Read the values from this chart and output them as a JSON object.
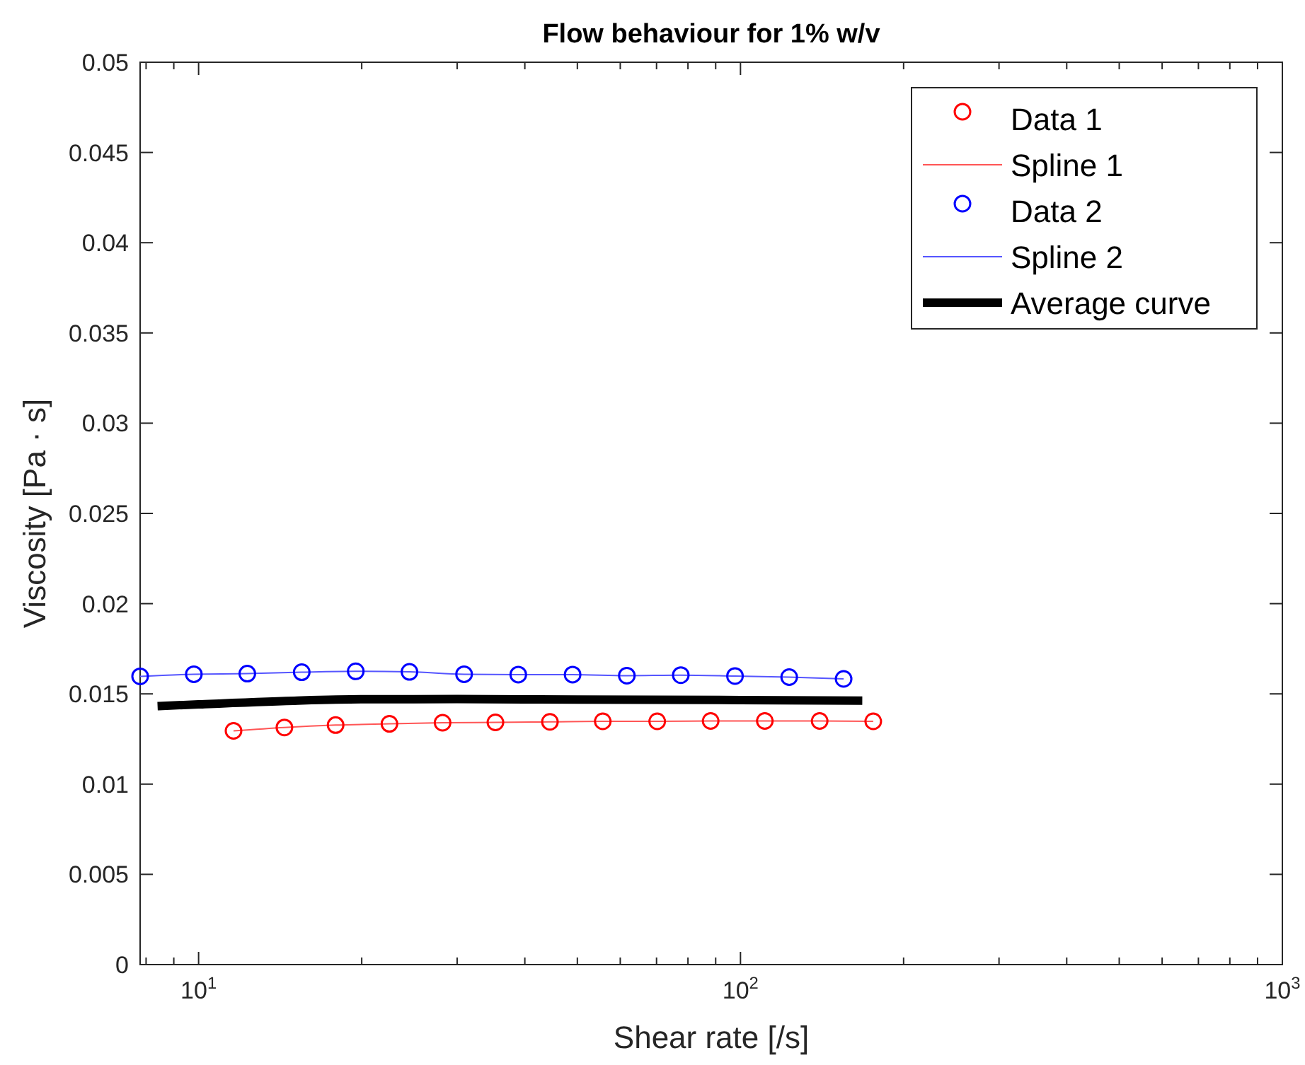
{
  "chart_data": {
    "type": "scatter",
    "title": "Flow behaviour for 1% w/v",
    "xlabel": "Shear rate [/s]",
    "ylabel": "Viscosity [Pa · s]",
    "log": "x",
    "xlim": [
      7.8,
      1000
    ],
    "ylim": [
      0,
      0.05
    ],
    "xticks": [
      {
        "value": 8,
        "label": null
      },
      {
        "value": 9,
        "label": null
      },
      {
        "value": 10,
        "label": "10$^{1}$"
      },
      {
        "value": 20,
        "label": null
      },
      {
        "value": 30,
        "label": null
      },
      {
        "value": 40,
        "label": null
      },
      {
        "value": 50,
        "label": null
      },
      {
        "value": 60,
        "label": null
      },
      {
        "value": 70,
        "label": null
      },
      {
        "value": 80,
        "label": null
      },
      {
        "value": 90,
        "label": null
      },
      {
        "value": 100,
        "label": "10$^{2}$"
      },
      {
        "value": 200,
        "label": null
      },
      {
        "value": 300,
        "label": null
      },
      {
        "value": 400,
        "label": null
      },
      {
        "value": 500,
        "label": null
      },
      {
        "value": 600,
        "label": null
      },
      {
        "value": 700,
        "label": null
      },
      {
        "value": 800,
        "label": null
      },
      {
        "value": 900,
        "label": null
      },
      {
        "value": 1000,
        "label": "10$^{3}$"
      }
    ],
    "yticks": [
      0,
      0.005,
      0.01,
      0.015,
      0.02,
      0.025,
      0.03,
      0.035,
      0.04,
      0.045,
      0.05
    ],
    "grid": false,
    "legend": "top right",
    "series": [
      {
        "name": "Data 1",
        "marker": "circle",
        "color": "#ff0000",
        "x": [
          11.6,
          14.4,
          17.9,
          22.5,
          28.2,
          35.3,
          44.5,
          55.7,
          70.2,
          88.1,
          110.9,
          140,
          175.8
        ],
        "values": [
          0.01295,
          0.01314,
          0.01327,
          0.01334,
          0.0134,
          0.01342,
          0.01345,
          0.01348,
          0.01348,
          0.0135,
          0.0135,
          0.0135,
          0.01348
        ]
      },
      {
        "name": "Spline 1",
        "type": "line",
        "color": "#ff5555",
        "x": [
          11.6,
          14.4,
          17.9,
          22.5,
          28.2,
          35.3,
          44.5,
          55.7,
          70.2,
          88.1,
          110.9,
          140,
          175.8
        ],
        "values": [
          0.01295,
          0.01314,
          0.01327,
          0.01334,
          0.0134,
          0.01342,
          0.01345,
          0.01348,
          0.01348,
          0.0135,
          0.0135,
          0.0135,
          0.01348
        ]
      },
      {
        "name": "Data 2",
        "marker": "circle",
        "color": "#0000ff",
        "x": [
          7.8,
          9.8,
          12.3,
          15.5,
          19.5,
          24.5,
          30.9,
          38.9,
          49,
          61.7,
          77.6,
          97.7,
          123,
          155
        ],
        "values": [
          0.01597,
          0.01609,
          0.01612,
          0.0162,
          0.01625,
          0.01622,
          0.01609,
          0.01607,
          0.01607,
          0.01601,
          0.01604,
          0.01599,
          0.01593,
          0.01583
        ]
      },
      {
        "name": "Spline 2",
        "type": "line",
        "color": "#5555ff",
        "x": [
          7.8,
          9.8,
          12.3,
          15.5,
          19.5,
          24.5,
          30.9,
          38.9,
          49,
          61.7,
          77.6,
          97.7,
          123,
          155
        ],
        "values": [
          0.01597,
          0.01609,
          0.01612,
          0.0162,
          0.01625,
          0.01622,
          0.01609,
          0.01607,
          0.01607,
          0.01601,
          0.01604,
          0.01599,
          0.01593,
          0.01583
        ]
      },
      {
        "name": "Average curve",
        "type": "line",
        "color": "#000000",
        "x": [
          8.4,
          10,
          15,
          20,
          30,
          50,
          100,
          167.8
        ],
        "values": [
          0.01432,
          0.01442,
          0.01462,
          0.0147,
          0.01471,
          0.01468,
          0.01466,
          0.01463
        ]
      }
    ]
  }
}
